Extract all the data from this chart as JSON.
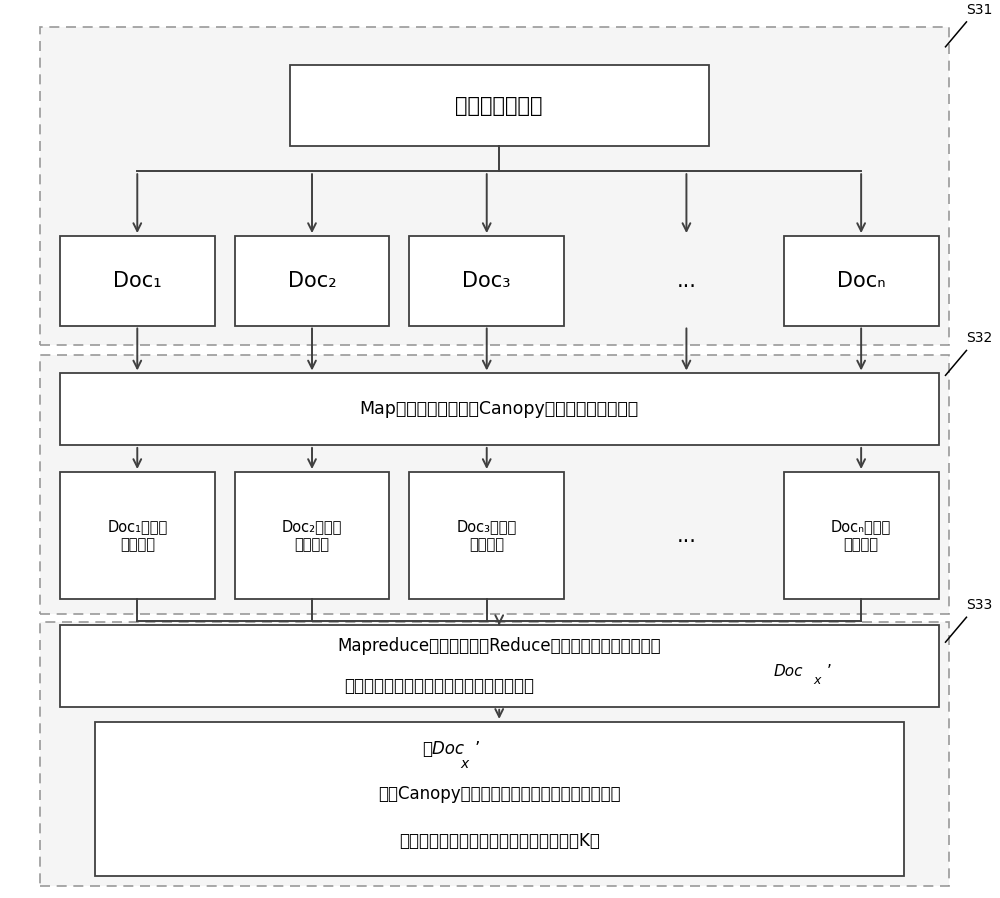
{
  "bg_color": "#ffffff",
  "box_fill": "#ffffff",
  "box_edge": "#404040",
  "dashed_fill": "#f5f5f5",
  "dashed_edge": "#999999",
  "text_color": "#000000",
  "arrow_color": "#404040",
  "label_s31": "S31",
  "label_s32": "S32",
  "label_s33": "S33",
  "top_box_text": "多维空间的点集",
  "map_box_text": "Map函数处理过程运用Canopy计算方法进行粗聚类",
  "doc_labels": [
    "Doc₁",
    "Doc₂",
    "Doc₃",
    "...",
    "Docₙ"
  ],
  "doc_cluster_labels": [
    "Doc₁的中间\n聚类中心",
    "Doc₂的中间\n聚类中心",
    "Doc₃的中间\n聚类中心",
    "...",
    "Docₙ的中间\n聚类中心"
  ],
  "reduce_box_line1": "Mapreduce处理程序中的Reduce处理过程将每个文件块的",
  "reduce_box_line2": "中间聚类中心进行集合，建成一个新文件块",
  "reduce_box_docx": "Doc",
  "reduce_box_docx_sub": "x",
  "reduce_box_docx_prime": "’",
  "final_line0": "对Doc",
  "final_line0_sub": "x",
  "final_line0_prime": "’",
  "final_box_line2": "运用Canopy计算方法进行粗聚类，得到最终的聚",
  "final_box_line3": "类中心以及所述聚类中心的中心点的个数K值"
}
